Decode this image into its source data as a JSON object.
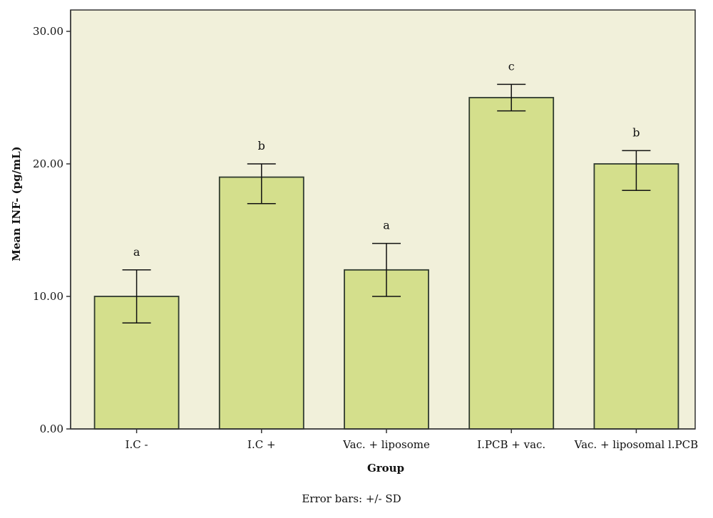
{
  "chart_data": {
    "type": "bar",
    "categories": [
      "I.C -",
      "I.C +",
      "Vac. + liposome",
      "I.PCB + vac.",
      "Vac. + liposomal l.PCB"
    ],
    "values": [
      10,
      19,
      12,
      25,
      20
    ],
    "error_sd": [
      2,
      1,
      2,
      1,
      1
    ],
    "error_low": [
      2,
      2,
      2,
      1,
      2
    ],
    "error_high": [
      2,
      1,
      2,
      1,
      1
    ],
    "significance_letters": [
      "a",
      "b",
      "a",
      "c",
      "b"
    ],
    "ylim": [
      0,
      30
    ],
    "yticks": [
      0,
      10,
      20,
      30
    ],
    "ytick_labels": [
      "0.00",
      "10.00",
      "20.00",
      "30.00"
    ],
    "xlabel": "Group",
    "ylabel": "Mean INF- (pg/mL)",
    "note": "Error bars: +/- SD",
    "grid": false,
    "colors": {
      "bar_fill": "#d4df8c",
      "bar_stroke": "#2f3a2f",
      "frame_fill": "#f1f0da",
      "frame_stroke": "#333333",
      "error_bar": "#111111"
    }
  }
}
